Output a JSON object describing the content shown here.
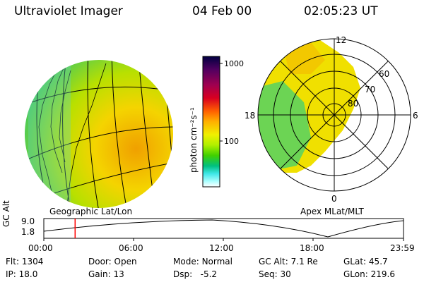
{
  "header": {
    "title": "Ultraviolet Imager",
    "date": "04 Feb 00",
    "time": "02:05:23 UT"
  },
  "left_panel": {
    "caption": "Geographic Lat/Lon"
  },
  "colorbar": {
    "label": "photon cm⁻²s⁻¹",
    "ticks": [
      "1000",
      "100"
    ],
    "scale": "log",
    "colors": [
      "#000040",
      "#500060",
      "#a00050",
      "#d80020",
      "#ff6000",
      "#ffb000",
      "#f0f000",
      "#b0f000",
      "#40d000",
      "#00c080",
      "#40e8e8",
      "#b0ffff",
      "#ffffff"
    ]
  },
  "polar_panel": {
    "caption": "Apex MLat/MLT",
    "mlt_labels": {
      "top": "12",
      "left": "18",
      "right": "6",
      "bottom": "0"
    },
    "lat_labels": [
      "60",
      "70",
      "80"
    ]
  },
  "timeline": {
    "ylabel": "GC Alt",
    "y_ticks": [
      "9.0",
      "1.8"
    ],
    "x_ticks": [
      "00:00",
      "06:00",
      "12:00",
      "18:00",
      "23:59"
    ],
    "current_time_fraction": 0.087,
    "marker_color": "#ff0000"
  },
  "info": {
    "flt": {
      "label": "Flt:",
      "value": "1304"
    },
    "ip": {
      "label": "IP:",
      "value": "18.0"
    },
    "door": {
      "label": "Door:",
      "value": "Open"
    },
    "gain": {
      "label": "Gain:",
      "value": "13"
    },
    "mode": {
      "label": "Mode:",
      "value": "Normal"
    },
    "dsp": {
      "label": "Dsp:",
      "value": "-5.2"
    },
    "gcalt": {
      "label": "GC Alt:",
      "value": "7.1 Re"
    },
    "seq": {
      "label": "Seq:",
      "value": "30"
    },
    "glat": {
      "label": "GLat:",
      "value": "45.7"
    },
    "glon": {
      "label": "GLon:",
      "value": "219.6"
    }
  }
}
